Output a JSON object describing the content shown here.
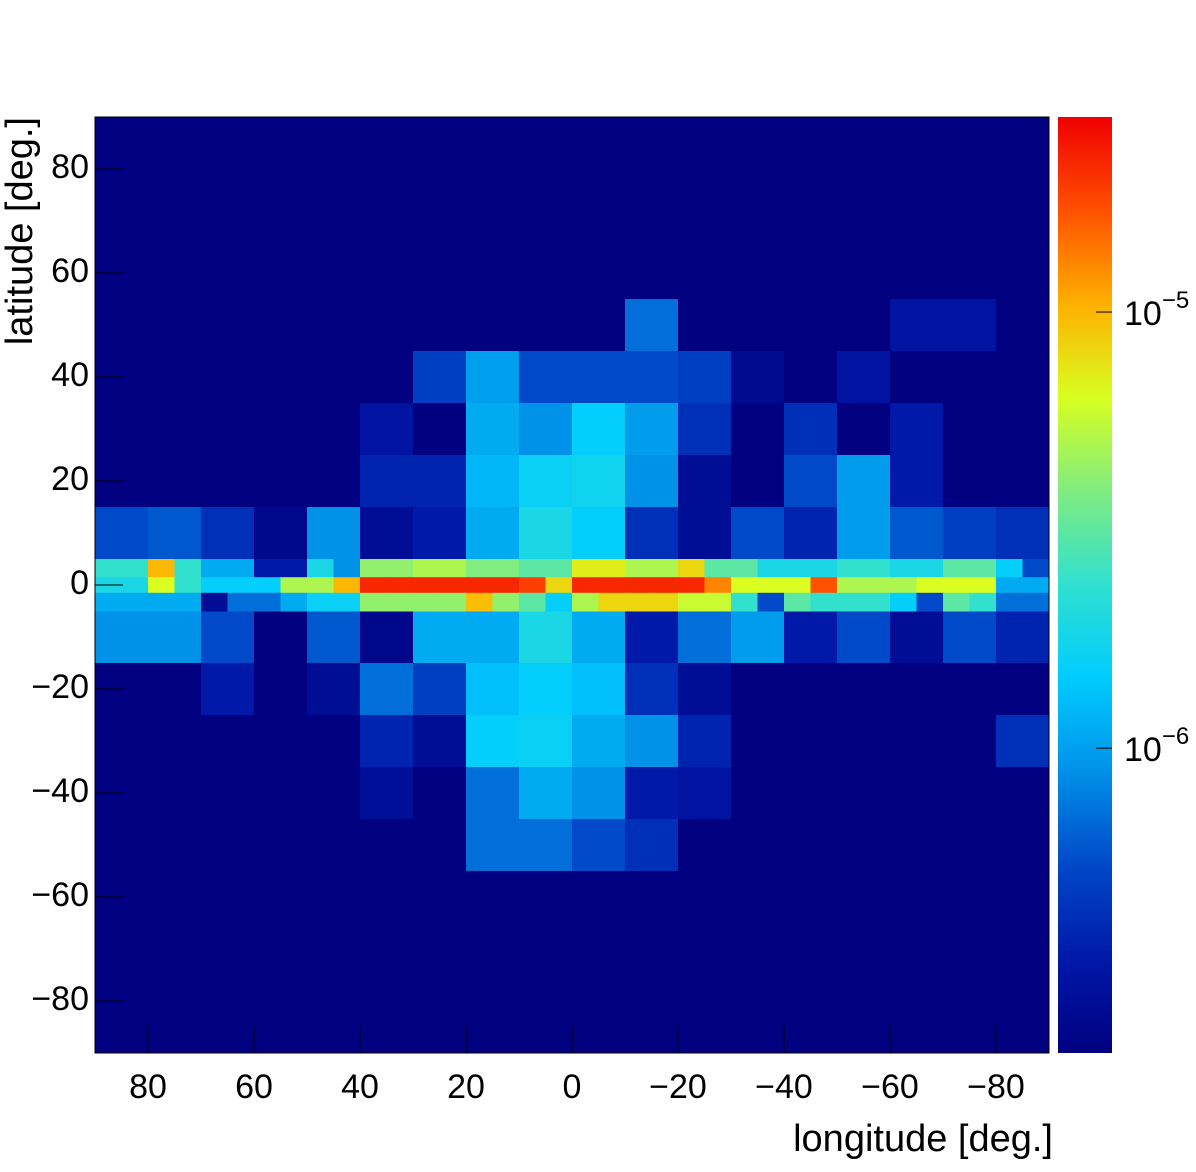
{
  "chart_data": {
    "type": "heatmap",
    "xlabel": "longitude [deg.]",
    "ylabel": "latitude [deg.]",
    "xlim": [
      90,
      -90
    ],
    "ylim": [
      -90,
      90
    ],
    "xticks": [
      80,
      60,
      40,
      20,
      0,
      {
        "value": -20,
        "label": "−20"
      },
      {
        "value": -40,
        "label": "−40"
      },
      {
        "value": -60,
        "label": "−60"
      },
      {
        "value": -80,
        "label": "−80"
      }
    ],
    "yticks": [
      {
        "value": -80,
        "label": "−80"
      },
      {
        "value": -60,
        "label": "−60"
      },
      {
        "value": -40,
        "label": "−40"
      },
      {
        "value": -20,
        "label": "−20"
      },
      0,
      20,
      40,
      60,
      80
    ],
    "zlim": [
      2e-07,
      2.8e-05
    ],
    "zlog": true,
    "zticks": [
      {
        "value": 1e-06,
        "label": "10",
        "exponent": "−6"
      },
      {
        "value": 1e-05,
        "label": "10",
        "exponent": "−5"
      }
    ],
    "palette": [
      "#000080",
      "#0018a8",
      "#0048c8",
      "#0090e8",
      "#00ccff",
      "#30e0d0",
      "#80ec80",
      "#d8ff20",
      "#ffb000",
      "#ff5000",
      "#f00000"
    ],
    "layers": [
      {
        "xbins": [
          90,
          80,
          70,
          60,
          50,
          40,
          30,
          20,
          10,
          0,
          -10,
          -20,
          -30,
          -40,
          -50,
          -60,
          -70,
          -80,
          -90
        ],
        "ybins": [
          90,
          85,
          75,
          65,
          55,
          45,
          35,
          25,
          15,
          5,
          -5,
          -15,
          -25,
          -35,
          -45,
          -55,
          -65,
          -75,
          -85,
          -90
        ],
        "values": [
          [
            2e-07,
            2e-07,
            2e-07,
            2e-07,
            2e-07,
            2e-07,
            2e-07,
            2e-07,
            2e-07,
            2e-07,
            2e-07,
            2e-07,
            2e-07,
            2e-07,
            2e-07,
            2e-07,
            2e-07,
            2e-07
          ],
          [
            2e-07,
            2e-07,
            2e-07,
            2e-07,
            2e-07,
            2e-07,
            2e-07,
            2e-07,
            2e-07,
            2e-07,
            2e-07,
            2e-07,
            2e-07,
            2e-07,
            2e-07,
            2e-07,
            2e-07,
            2e-07
          ],
          [
            2e-07,
            2e-07,
            2e-07,
            2e-07,
            2e-07,
            2e-07,
            2e-07,
            2e-07,
            2e-07,
            2e-07,
            2e-07,
            2e-07,
            2e-07,
            2e-07,
            2e-07,
            2e-07,
            2e-07,
            2e-07
          ],
          [
            2e-07,
            2e-07,
            2e-07,
            2e-07,
            2e-07,
            2e-07,
            2e-07,
            2e-07,
            2e-07,
            2e-07,
            2e-07,
            2e-07,
            2e-07,
            2e-07,
            2e-07,
            2e-07,
            2e-07,
            2e-07
          ],
          [
            2e-07,
            2e-07,
            2e-07,
            2e-07,
            2e-07,
            2e-07,
            2e-07,
            2e-07,
            2e-07,
            2e-07,
            7e-07,
            2e-07,
            2e-07,
            2e-07,
            2e-07,
            3e-07,
            3e-07,
            2e-07
          ],
          [
            2e-07,
            2e-07,
            2e-07,
            2e-07,
            2e-07,
            2e-07,
            4.9e-07,
            1e-06,
            5.4e-07,
            5.4e-07,
            5.4e-07,
            4.9e-07,
            2.5e-07,
            2e-07,
            3e-07,
            2e-07,
            2e-07,
            2e-07
          ],
          [
            2e-07,
            2e-07,
            2e-07,
            2e-07,
            2e-07,
            3e-07,
            2e-07,
            1.1e-06,
            8.9e-07,
            1.5e-06,
            9.8e-07,
            4.2e-07,
            2e-07,
            4.2e-07,
            2e-07,
            3.3e-07,
            2e-07,
            2e-07
          ],
          [
            2e-07,
            2e-07,
            2e-07,
            2e-07,
            2e-07,
            3.7e-07,
            3.7e-07,
            1.2e-06,
            1.6e-06,
            1.7e-06,
            8.9e-07,
            2.6e-07,
            2e-07,
            5.4e-07,
            9.8e-07,
            3.3e-07,
            2e-07,
            2e-07
          ],
          [
            5.4e-07,
            6e-07,
            4.2e-07,
            2.3e-07,
            8.9e-07,
            2.6e-07,
            3.3e-07,
            1.1e-06,
            1.9e-06,
            1.5e-06,
            4.2e-07,
            2.6e-07,
            5.4e-07,
            3.7e-07,
            9.8e-07,
            6e-07,
            4.9e-07,
            4.2e-07
          ],
          [
            null,
            null,
            null,
            null,
            null,
            null,
            null,
            null,
            null,
            null,
            null,
            null,
            null,
            null,
            null,
            null,
            null,
            null
          ],
          [
            8.9e-07,
            8.9e-07,
            5.4e-07,
            2e-07,
            6e-07,
            2.3e-07,
            1.1e-06,
            1.1e-06,
            1.9e-06,
            1.1e-06,
            3.3e-07,
            7e-07,
            9.8e-07,
            3.3e-07,
            5.4e-07,
            2.6e-07,
            5.4e-07,
            3.7e-07
          ],
          [
            2e-07,
            2e-07,
            3.3e-07,
            2e-07,
            2.6e-07,
            7e-07,
            4.9e-07,
            1.3e-06,
            1.5e-06,
            1.3e-06,
            4.2e-07,
            2.6e-07,
            2e-07,
            2e-07,
            2e-07,
            2e-07,
            2e-07,
            2e-07
          ],
          [
            2e-07,
            2e-07,
            2e-07,
            2e-07,
            2e-07,
            3.7e-07,
            2.6e-07,
            1.5e-06,
            1.6e-06,
            1.1e-06,
            8.9e-07,
            3.7e-07,
            2e-07,
            2e-07,
            2e-07,
            2e-07,
            2e-07,
            4.2e-07
          ],
          [
            2e-07,
            2e-07,
            2e-07,
            2e-07,
            2e-07,
            2.7e-07,
            2e-07,
            7e-07,
            1.1e-06,
            8.9e-07,
            3.3e-07,
            3e-07,
            2e-07,
            2e-07,
            2e-07,
            2e-07,
            2e-07,
            2e-07
          ],
          [
            2e-07,
            2e-07,
            2e-07,
            2e-07,
            2e-07,
            2e-07,
            2e-07,
            7e-07,
            7e-07,
            5.4e-07,
            4.2e-07,
            2e-07,
            2e-07,
            2e-07,
            2e-07,
            2e-07,
            2e-07,
            2e-07
          ],
          [
            2e-07,
            2e-07,
            2e-07,
            2e-07,
            2e-07,
            2e-07,
            2e-07,
            2e-07,
            2e-07,
            2e-07,
            2e-07,
            2e-07,
            2e-07,
            2e-07,
            2e-07,
            2e-07,
            2e-07,
            2e-07
          ],
          [
            2e-07,
            2e-07,
            2e-07,
            2e-07,
            2e-07,
            2e-07,
            2e-07,
            2e-07,
            2e-07,
            2e-07,
            2e-07,
            2e-07,
            2e-07,
            2e-07,
            2e-07,
            2e-07,
            2e-07,
            2e-07
          ],
          [
            2e-07,
            2e-07,
            2e-07,
            2e-07,
            2e-07,
            2e-07,
            2e-07,
            2e-07,
            2e-07,
            2e-07,
            2e-07,
            2e-07,
            2e-07,
            2e-07,
            2e-07,
            2e-07,
            2e-07,
            2e-07
          ],
          [
            2e-07,
            2e-07,
            2e-07,
            2e-07,
            2e-07,
            2e-07,
            2e-07,
            2e-07,
            2e-07,
            2e-07,
            2e-07,
            2e-07,
            2e-07,
            2e-07,
            2e-07,
            2e-07,
            2e-07,
            2e-07
          ]
        ]
      },
      {
        "xbins": [
          90,
          85,
          80,
          75,
          70,
          65,
          60,
          55,
          50,
          45,
          40,
          35,
          30,
          25,
          20,
          15,
          10,
          5,
          0,
          -5,
          -10,
          -15,
          -20,
          -25,
          -30,
          -35,
          -40,
          -45,
          -50,
          -55,
          -60,
          -65,
          -70,
          -75,
          -80,
          -85,
          -90
        ],
        "ybins": [
          5,
          1.5,
          -1.5,
          -5
        ],
        "values": [
          [
            2.4e-06,
            2.4e-06,
            1e-05,
            2.4e-06,
            1.1e-06,
            1.1e-06,
            3.3e-07,
            3.3e-07,
            1.9e-06,
            8.9e-07,
            4.3e-06,
            4.3e-06,
            5e-06,
            5e-06,
            3.9e-06,
            3.9e-06,
            3.1e-06,
            3.1e-06,
            7.1e-06,
            7.1e-06,
            5e-06,
            5e-06,
            8.2e-06,
            3.1e-06,
            3.1e-06,
            1.9e-06,
            1.9e-06,
            1.9e-06,
            2.4e-06,
            2.4e-06,
            1.9e-06,
            1.9e-06,
            3.1e-06,
            3.1e-06,
            1.5e-06,
            5.4e-07
          ],
          [
            1.9e-06,
            1.9e-06,
            6.4e-06,
            2.4e-06,
            1.5e-06,
            1.5e-06,
            1.5e-06,
            5e-06,
            5e-06,
            1e-05,
            2.2e-05,
            2.2e-05,
            2.2e-05,
            2.2e-05,
            2.2e-05,
            2.2e-05,
            1.9e-05,
            8.2e-06,
            2.2e-05,
            2.2e-05,
            2.2e-05,
            2.2e-05,
            2.2e-05,
            1.3e-05,
            6.4e-06,
            6.4e-06,
            6.4e-06,
            1.7e-05,
            5e-06,
            5e-06,
            5e-06,
            6.4e-06,
            6.4e-06,
            6.4e-06,
            1.1e-06,
            1.1e-06
          ],
          [
            1.1e-06,
            1.1e-06,
            1.1e-06,
            1.1e-06,
            2.6e-07,
            7e-07,
            7e-07,
            1.1e-06,
            1.6e-06,
            1.6e-06,
            4.3e-06,
            4.3e-06,
            4.3e-06,
            4.3e-06,
            9.5e-06,
            4.3e-06,
            3.1e-06,
            1.5e-06,
            5e-06,
            8.2e-06,
            8.2e-06,
            8.2e-06,
            5.8e-06,
            5.8e-06,
            2.4e-06,
            5.4e-07,
            3.1e-06,
            2.4e-06,
            2.4e-06,
            2.4e-06,
            1.5e-06,
            5.4e-07,
            3.1e-06,
            2.4e-06,
            7e-07,
            7e-07
          ]
        ]
      }
    ]
  }
}
